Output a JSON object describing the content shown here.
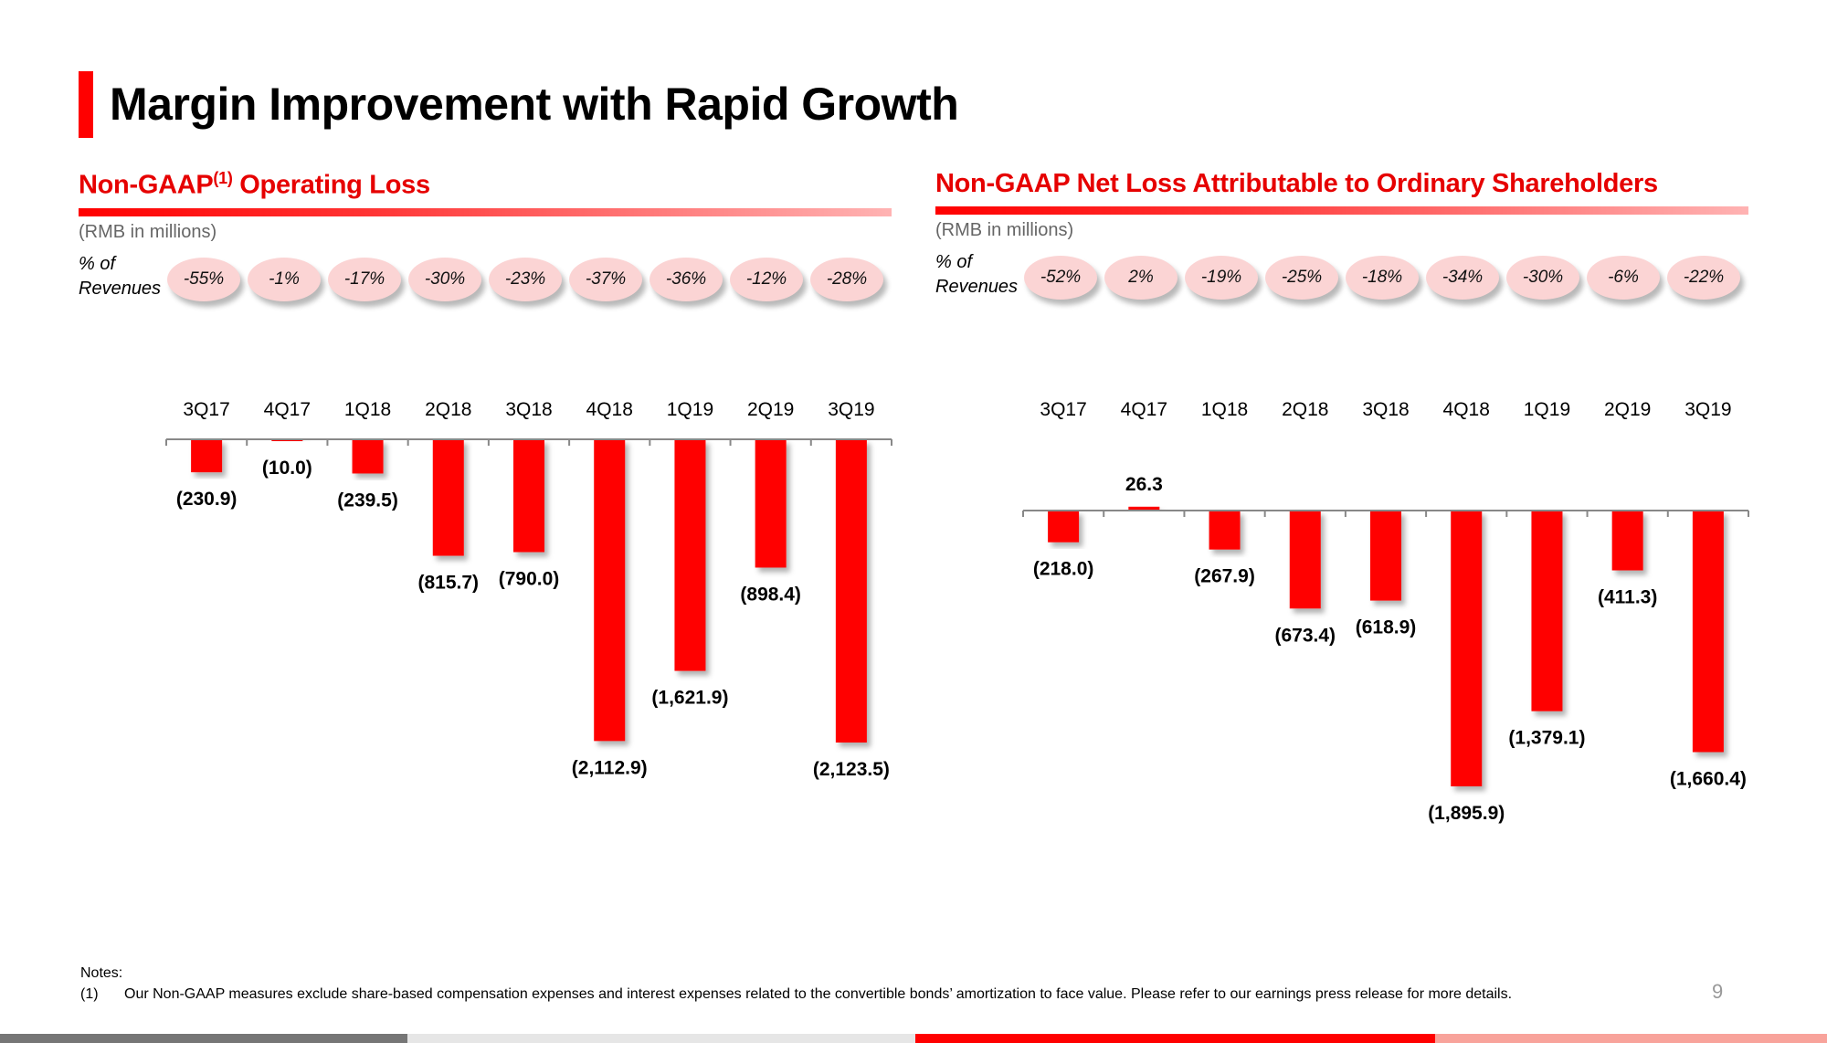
{
  "page": {
    "title": "Margin Improvement with Rapid Growth",
    "page_number": "9",
    "accent_color": "#ff0000",
    "notes_heading": "Notes:",
    "notes": [
      {
        "num": "(1)",
        "text": "Our Non-GAAP measures exclude share-based compensation expenses and interest expenses related to the convertible bonds’ amortization to face value. Please refer to our earnings press release for more details."
      }
    ],
    "footer_colors": [
      "#767676",
      "#e6e6e6",
      "#ff0000",
      "#f8a39b"
    ]
  },
  "panels": [
    {
      "title": "Non-GAAP",
      "title_sup": "(1)",
      "title_rest": " Operating Loss",
      "unit": "(RMB in millions)",
      "pct_label_line1": "% of",
      "pct_label_line2": "Revenues",
      "pct_of_revenues": [
        "-55%",
        "-1%",
        "-17%",
        "-30%",
        "-23%",
        "-37%",
        "-36%",
        "-12%",
        "-28%"
      ]
    },
    {
      "title": "Non-GAAP Net Loss Attributable to Ordinary Shareholders",
      "title_sup": "",
      "title_rest": "",
      "unit": "(RMB in millions)",
      "pct_label_line1": "% of",
      "pct_label_line2": "Revenues",
      "pct_of_revenues": [
        "-52%",
        "2%",
        "-19%",
        "-25%",
        "-18%",
        "-34%",
        "-30%",
        "-6%",
        "-22%"
      ]
    }
  ],
  "chart_data": [
    {
      "type": "bar",
      "title": "Non-GAAP(1) Operating Loss",
      "ylabel": "RMB in millions",
      "xlabel": "",
      "categories": [
        "3Q17",
        "4Q17",
        "1Q18",
        "2Q18",
        "3Q18",
        "4Q18",
        "1Q19",
        "2Q19",
        "3Q19"
      ],
      "values": [
        -230.9,
        -10.0,
        -239.5,
        -815.7,
        -790.0,
        -2112.9,
        -1621.9,
        -898.4,
        -2123.5
      ],
      "data_labels": [
        "(230.9)",
        "(10.0)",
        "(239.5)",
        "(815.7)",
        "(790.0)",
        "(2,112.9)",
        "(1,621.9)",
        "(898.4)",
        "(2,123.5)"
      ],
      "ylim": [
        -2123.5,
        0
      ],
      "grid": false,
      "bar_color": "#ff0000",
      "category_axis_position": "top"
    },
    {
      "type": "bar",
      "title": "Non-GAAP Net Loss Attributable to Ordinary Shareholders",
      "ylabel": "RMB in millions",
      "xlabel": "",
      "categories": [
        "3Q17",
        "4Q17",
        "1Q18",
        "2Q18",
        "3Q18",
        "4Q18",
        "1Q19",
        "2Q19",
        "3Q19"
      ],
      "values": [
        -218.0,
        26.3,
        -267.9,
        -673.4,
        -618.9,
        -1895.9,
        -1379.1,
        -411.3,
        -1660.4
      ],
      "data_labels": [
        "(218.0)",
        "26.3",
        "(267.9)",
        "(673.4)",
        "(618.9)",
        "(1,895.9)",
        "(1,379.1)",
        "(411.3)",
        "(1,660.4)"
      ],
      "ylim": [
        -1895.9,
        26.3
      ],
      "grid": false,
      "bar_color": "#ff0000",
      "category_axis_position": "top"
    }
  ]
}
